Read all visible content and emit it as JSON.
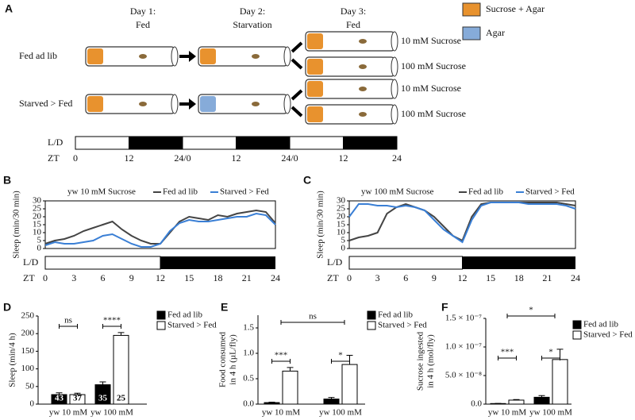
{
  "diagram": {
    "panel": "A",
    "days": [
      {
        "day": "Day 1:",
        "state": "Fed"
      },
      {
        "day": "Day 2:",
        "state": "Starvation"
      },
      {
        "day": "Day 3:",
        "state": "Fed"
      }
    ],
    "legend": [
      {
        "label": "Sucrose + Agar",
        "color": "#e8922e"
      },
      {
        "label": "Agar",
        "color": "#86abd9"
      }
    ],
    "groups": [
      "Fed ad lib",
      "Starved > Fed"
    ],
    "outcomes": [
      "10 mM Sucrose",
      "100 mM Sucrose"
    ],
    "ld_label": "L/D",
    "zt_label": "ZT",
    "zt_ticks": [
      "0",
      "12",
      "24/0",
      "12",
      "24/0",
      "12",
      "24"
    ]
  },
  "chart_data": [
    {
      "type": "line",
      "panel": "B",
      "subtitle": "yw 10 mM Sucrose",
      "y_label": [
        "Sleep (min/30 min)"
      ],
      "x_label": "ZT",
      "ld_label": "L/D",
      "dark_start": 12,
      "x": [
        0,
        1,
        2,
        3,
        4,
        5,
        6,
        7,
        8,
        9,
        10,
        11,
        12,
        13,
        14,
        15,
        16,
        17,
        18,
        19,
        20,
        21,
        22,
        23,
        24
      ],
      "xlim": [
        0,
        24
      ],
      "xticks": [
        0,
        3,
        6,
        9,
        12,
        15,
        18,
        21,
        24
      ],
      "ylim": [
        0,
        30
      ],
      "yticks": [
        0,
        5,
        10,
        15,
        20,
        25,
        30
      ],
      "series": [
        {
          "name": "Fed ad lib",
          "color": "#444444",
          "values": [
            3,
            5,
            6,
            8,
            11,
            13,
            15,
            17,
            12,
            8,
            5,
            3,
            3,
            10,
            17,
            20,
            19,
            18,
            21,
            20,
            22,
            23,
            24,
            23,
            16
          ]
        },
        {
          "name": "Starved > Fed",
          "color": "#3a7fd5",
          "values": [
            2,
            4,
            3,
            3,
            4,
            5,
            8,
            9,
            6,
            3,
            1,
            1,
            3,
            11,
            16,
            18,
            17,
            17,
            18,
            19,
            20,
            20,
            22,
            21,
            15
          ]
        }
      ]
    },
    {
      "type": "line",
      "panel": "C",
      "subtitle": "yw 100 mM Sucrose",
      "y_label": [
        "Sleep (min/30 min)"
      ],
      "x_label": "ZT",
      "ld_label": "L/D",
      "dark_start": 12,
      "x": [
        0,
        1,
        2,
        3,
        4,
        5,
        6,
        7,
        8,
        9,
        10,
        11,
        12,
        13,
        14,
        15,
        16,
        17,
        18,
        19,
        20,
        21,
        22,
        23,
        24
      ],
      "xlim": [
        0,
        24
      ],
      "xticks": [
        0,
        3,
        6,
        9,
        12,
        15,
        18,
        21,
        24
      ],
      "ylim": [
        0,
        30
      ],
      "yticks": [
        0,
        5,
        10,
        15,
        20,
        25,
        30
      ],
      "series": [
        {
          "name": "Fed ad lib",
          "color": "#444444",
          "values": [
            5,
            7,
            8,
            10,
            22,
            26,
            28,
            26,
            24,
            20,
            14,
            8,
            5,
            20,
            28,
            29,
            29,
            29,
            29,
            29,
            29,
            29,
            29,
            28,
            27
          ]
        },
        {
          "name": "Starved > Fed",
          "color": "#3a7fd5",
          "values": [
            20,
            28,
            28,
            27,
            27,
            26,
            27,
            26,
            24,
            18,
            12,
            8,
            4,
            18,
            27,
            29,
            29,
            29,
            29,
            28,
            28,
            28,
            28,
            27,
            25
          ]
        }
      ]
    },
    {
      "type": "bar",
      "panel": "D",
      "y_label": [
        "Sleep (min/4 h)"
      ],
      "categories": [
        "yw 10 mM",
        "yw 100 mM"
      ],
      "ylim": [
        0,
        250
      ],
      "yticks": [
        0,
        50,
        100,
        150,
        200,
        250
      ],
      "series": [
        {
          "name": "Fed ad lib",
          "color": "#000000",
          "values": [
            27,
            55
          ],
          "errors": [
            5,
            8
          ],
          "n": [
            43,
            35
          ]
        },
        {
          "name": "Starved > Fed",
          "color": "#ffffff",
          "values": [
            27,
            195
          ],
          "errors": [
            4,
            8
          ],
          "n": [
            37,
            25
          ]
        }
      ],
      "group_tests": [
        "ns",
        "****"
      ]
    },
    {
      "type": "bar",
      "panel": "E",
      "y_label": [
        "Food consumed",
        "in 4 h (µL/fly)"
      ],
      "categories": [
        "yw 10 mM",
        "yw 100 mM"
      ],
      "ylim": [
        0,
        1.75
      ],
      "yticks": [
        {
          "value": 0,
          "label": "0.0"
        },
        0.5,
        {
          "value": 1,
          "label": "1.0"
        },
        1.5
      ],
      "series": [
        {
          "name": "Fed ad lib",
          "color": "#000000",
          "values": [
            0.03,
            0.1
          ],
          "errors": [
            0.01,
            0.03
          ]
        },
        {
          "name": "Starved > Fed",
          "color": "#ffffff",
          "values": [
            0.65,
            0.78
          ],
          "errors": [
            0.07,
            0.18
          ]
        }
      ],
      "group_tests": [
        "***",
        "*"
      ],
      "across_test": "ns"
    },
    {
      "type": "bar",
      "panel": "F",
      "y_label": [
        "Sucrose ingested",
        "in 4 h (mol/fly)"
      ],
      "categories": [
        "yw 10 mM",
        "yw 100 mM"
      ],
      "ylim": [
        0,
        1.5e-07
      ],
      "yticks": [
        {
          "value": 0,
          "label": "0.0"
        },
        {
          "value": 5e-08,
          "label": "5.0 × 10⁻⁸"
        },
        {
          "value": 1e-07,
          "label": "1.0 × 10⁻⁷"
        },
        {
          "value": 1.5e-07,
          "label": "1.5 × 10⁻⁷"
        }
      ],
      "series": [
        {
          "name": "Fed ad lib",
          "color": "#000000",
          "values": [
            1e-09,
            1.2e-08
          ],
          "errors": [
            3e-10,
            3e-09
          ]
        },
        {
          "name": "Starved > Fed",
          "color": "#ffffff",
          "values": [
            7e-09,
            7.8e-08
          ],
          "errors": [
            1e-09,
            1.8e-08
          ]
        }
      ],
      "group_tests": [
        "***",
        "*"
      ],
      "across_test": "*"
    }
  ]
}
